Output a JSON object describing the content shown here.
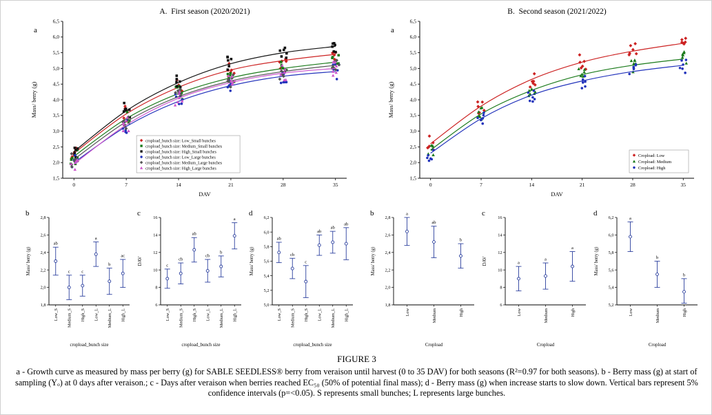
{
  "figure": {
    "caption_title": "FIGURE 3",
    "caption_text": "a - Growth curve as measured by mass per berry (g) for SABLE SEEDLESS® berry from veraison until harvest (0 to 35 DAV) for both seasons (R²=0.97 for both seasons). b - Berry mass (g) at start of sampling (Yₒ) at 0 days after veraison.; c - Days after veraison when berries reached EC₅₀ (50% of potential final mass); d - Berry mass (g) when increase starts to slow down. Vertical bars represent 5% confidence intervals (p=<0.05). S represents small bunches; L represents large bunches."
  },
  "chart_data": [
    {
      "id": "growth-first-season",
      "type": "scatter",
      "panel_label": "a",
      "title": "A.  First season (2020/2021)",
      "xlabel": "DAV",
      "ylabel": "Mass/ berry (g)",
      "x": [
        0,
        7,
        14,
        21,
        28,
        35
      ],
      "xlim": [
        -1.5,
        36.5
      ],
      "ylim": [
        1.5,
        6.5
      ],
      "ystep": 0.5,
      "decimal_comma": true,
      "scatter_spread": 0.5,
      "points_per_cluster": 6,
      "legend": {
        "x_frac": 0.26,
        "width": 150,
        "item_h": 8,
        "font_size": 6
      },
      "series": [
        {
          "name": "cropload_bunch size: Low_Small bunches",
          "color": "#cc2222",
          "marker": "diamond",
          "values": [
            2.3,
            3.55,
            4.4,
            4.95,
            5.25,
            5.45
          ]
        },
        {
          "name": "cropload_bunch size: Medium_Small bunches",
          "color": "#1a7a1a",
          "marker": "square",
          "values": [
            2.2,
            3.4,
            4.2,
            4.7,
            5.0,
            5.2
          ]
        },
        {
          "name": "cropload_bunch size: High_Small bunches",
          "color": "#111111",
          "marker": "square",
          "values": [
            2.35,
            3.65,
            4.55,
            5.15,
            5.5,
            5.7
          ]
        },
        {
          "name": "cropload_bunch size: Low_Large bunches",
          "color": "#2233bb",
          "marker": "circle",
          "values": [
            2.0,
            3.15,
            3.95,
            4.45,
            4.75,
            4.9
          ]
        },
        {
          "name": "cropload_bunch size: Medium_Large bunches",
          "color": "#555555",
          "marker": "diamond",
          "values": [
            2.1,
            3.3,
            4.1,
            4.6,
            4.9,
            5.1
          ]
        },
        {
          "name": "cropload_bunch size: High_Large bunches",
          "color": "#cc55cc",
          "marker": "triangle",
          "values": [
            1.95,
            3.2,
            4.05,
            4.55,
            4.85,
            5.0
          ]
        }
      ]
    },
    {
      "id": "growth-second-season",
      "type": "scatter",
      "panel_label": "a",
      "title": "B.  Second season (2021/2022)",
      "xlabel": "DAV",
      "ylabel": "Mass/ berry (g)",
      "x": [
        0,
        7,
        14,
        21,
        28,
        35
      ],
      "xlim": [
        -1.5,
        36.5
      ],
      "ylim": [
        1.5,
        6.5
      ],
      "ystep": 0.5,
      "decimal_comma": true,
      "scatter_spread": 0.5,
      "points_per_cluster": 6,
      "legend": {
        "width": 86,
        "item_h": 9,
        "font_size": 6.3
      },
      "series": [
        {
          "name": "Cropload: Low",
          "color": "#cc2222",
          "marker": "diamond",
          "values": [
            2.6,
            3.8,
            4.65,
            5.2,
            5.55,
            5.8
          ]
        },
        {
          "name": "Cropload: Medium",
          "color": "#1a7a1a",
          "marker": "triangle",
          "values": [
            2.4,
            3.55,
            4.3,
            4.8,
            5.1,
            5.3
          ]
        },
        {
          "name": "Cropload: High",
          "color": "#2233bb",
          "marker": "circle",
          "values": [
            2.3,
            3.4,
            4.15,
            4.6,
            4.9,
            5.1
          ]
        }
      ]
    },
    {
      "id": "y0-first-season",
      "type": "errorbar",
      "panel_label": "b",
      "ylabel": "Mass/ berry (g)",
      "xlabel": "cropload_bunch size",
      "categories": [
        "Low_S",
        "Medium_S",
        "High_S",
        "Low_L",
        "Medium_L",
        "High_L"
      ],
      "ylim": [
        1.8,
        2.8
      ],
      "ystep": 0.2,
      "ydec": 1,
      "decimal_comma": true,
      "color": "#2b3f9e",
      "means": [
        2.3,
        2.0,
        2.02,
        2.38,
        2.07,
        2.16
      ],
      "ci_low": [
        2.14,
        1.86,
        1.9,
        2.24,
        1.92,
        2.0
      ],
      "ci_high": [
        2.46,
        2.14,
        2.14,
        2.52,
        2.22,
        2.32
      ],
      "letters": [
        "ab",
        "c",
        "c",
        "a",
        "b",
        "ac"
      ]
    },
    {
      "id": "ec50-first-season",
      "type": "errorbar",
      "panel_label": "c",
      "ylabel": "DAV",
      "xlabel": "cropload_bunch size",
      "categories": [
        "Low_S",
        "Medium_S",
        "High_S",
        "Low_L",
        "Medium_L",
        "High_L"
      ],
      "ylim": [
        6,
        16
      ],
      "ystep": 2,
      "ydec": 0,
      "decimal_comma": false,
      "color": "#2b3f9e",
      "means": [
        9.0,
        9.6,
        12.3,
        9.9,
        10.4,
        13.9
      ],
      "ci_low": [
        7.9,
        8.4,
        10.9,
        8.6,
        9.2,
        12.4
      ],
      "ci_high": [
        10.1,
        10.8,
        13.7,
        11.2,
        11.6,
        15.4
      ],
      "letters": [
        "c",
        "cb",
        "ab",
        "cb",
        "b",
        "a"
      ]
    },
    {
      "id": "final-mass-first-season",
      "type": "errorbar",
      "panel_label": "d",
      "ylabel": "Mass/ berry (g)",
      "xlabel": "cropload_bunch size",
      "categories": [
        "Low_S",
        "Medium_S",
        "High_S",
        "Low_L",
        "Medium_L",
        "High_L"
      ],
      "ylim": [
        5.0,
        6.2
      ],
      "ystep": 0.2,
      "ydec": 1,
      "decimal_comma": true,
      "color": "#2b3f9e",
      "means": [
        5.72,
        5.5,
        5.32,
        5.82,
        5.86,
        5.84
      ],
      "ci_low": [
        5.58,
        5.36,
        5.1,
        5.68,
        5.71,
        5.62
      ],
      "ci_high": [
        5.86,
        5.64,
        5.54,
        5.96,
        6.01,
        6.06
      ],
      "letters": [
        "ab",
        "cb",
        "c",
        "ab",
        "ab",
        "ab"
      ]
    },
    {
      "id": "y0-second-season",
      "type": "errorbar",
      "panel_label": "b",
      "ylabel": "Mass/ berry (g)",
      "xlabel": "Cropload",
      "categories": [
        "Low",
        "Medium",
        "High"
      ],
      "ylim": [
        1.8,
        2.8
      ],
      "ystep": 0.2,
      "ydec": 1,
      "decimal_comma": true,
      "color": "#2b3f9e",
      "means": [
        2.64,
        2.52,
        2.36
      ],
      "ci_low": [
        2.48,
        2.34,
        2.22
      ],
      "ci_high": [
        2.8,
        2.7,
        2.5
      ],
      "letters": [
        "a",
        "ab",
        "b"
      ]
    },
    {
      "id": "ec50-second-season",
      "type": "errorbar",
      "panel_label": "c",
      "ylabel": "DAV",
      "xlabel": "Cropload",
      "categories": [
        "Low",
        "Medium",
        "High"
      ],
      "ylim": [
        6,
        16
      ],
      "ystep": 2,
      "ydec": 0,
      "decimal_comma": false,
      "color": "#2b3f9e",
      "means": [
        9.0,
        9.3,
        10.4
      ],
      "ci_low": [
        7.6,
        7.8,
        8.7
      ],
      "ci_high": [
        10.4,
        10.8,
        12.1
      ],
      "letters": [
        "a",
        "a",
        "a"
      ]
    },
    {
      "id": "final-mass-second-season",
      "type": "errorbar",
      "panel_label": "d",
      "ylabel": "Mass/ berry (g)",
      "xlabel": "Cropload",
      "categories": [
        "Low",
        "Medium",
        "High"
      ],
      "ylim": [
        5.2,
        6.2
      ],
      "ystep": 0.2,
      "ydec": 1,
      "decimal_comma": true,
      "color": "#2b3f9e",
      "means": [
        5.98,
        5.55,
        5.35
      ],
      "ci_low": [
        5.81,
        5.4,
        5.22
      ],
      "ci_high": [
        6.15,
        5.7,
        5.5
      ],
      "letters": [
        "a",
        "b",
        "b"
      ]
    }
  ]
}
